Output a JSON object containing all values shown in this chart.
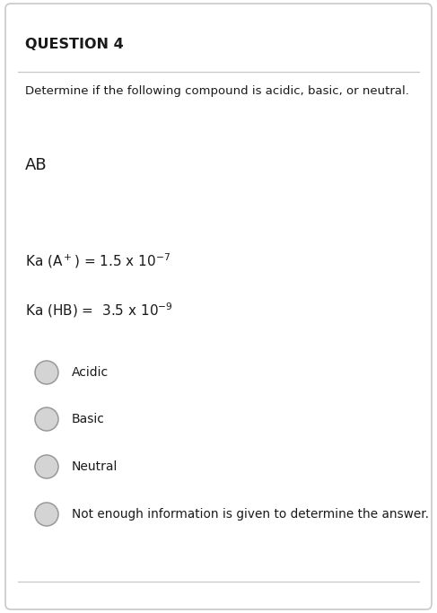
{
  "title": "QUESTION 4",
  "question": "Determine if the following compound is acidic, basic, or neutral.",
  "compound": "AB",
  "ka1_text": "Ka (A$^+$) = 1.5 x 10$^{-7}$",
  "ka2_text": "Ka (HB) =  3.5 x 10$^{-9}$",
  "options": [
    "Acidic",
    "Basic",
    "Neutral",
    "Not enough information is given to determine the answer."
  ],
  "bg_color": "#ffffff",
  "border_color": "#c8c8c8",
  "text_color": "#1a1a1a",
  "circle_fill": "#d4d4d4",
  "circle_edge": "#999999",
  "fig_width": 4.87,
  "fig_height": 6.83,
  "dpi": 100
}
